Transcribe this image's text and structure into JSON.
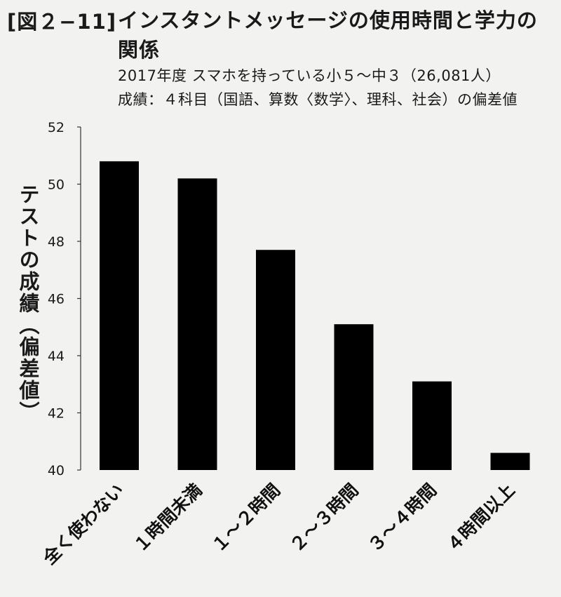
{
  "figure_label": "[図２−11]",
  "title": "インスタントメッセージの使用時間と学力の関係",
  "subtitle_1": "2017年度 スマホを持っている小５〜中３（26,081人）",
  "subtitle_2": "成績：４科目（国語、算数〈数学〉、理科、社会）の偏差値",
  "colors": {
    "bar": "#000000",
    "axis": "#333333",
    "background": "#f2f2f0"
  },
  "chart_data": {
    "type": "bar",
    "title": "インスタントメッセージの使用時間と学力の関係",
    "ylabel": "テストの成績（偏差値）",
    "xlabel": "",
    "categories": [
      "全く使わない",
      "１時間未満",
      "１〜２時間",
      "２〜３時間",
      "３〜４時間",
      "４時間以上"
    ],
    "values": [
      50.8,
      50.2,
      47.7,
      45.1,
      43.1,
      40.6
    ],
    "ylim": [
      40,
      52
    ],
    "yticks": [
      40,
      42,
      44,
      46,
      48,
      50,
      52
    ],
    "grid": false,
    "legend": "none"
  }
}
